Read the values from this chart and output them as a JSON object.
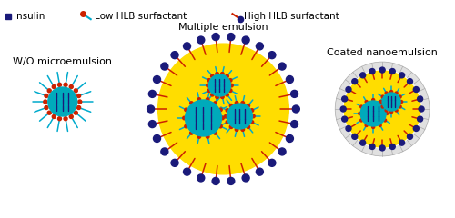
{
  "bg_color": "#ffffff",
  "insulin_color": "#1a1a7a",
  "low_hlb_line_color": "#00aacc",
  "low_hlb_dot_color": "#cc2200",
  "high_hlb_line_color": "#cc2200",
  "high_hlb_dot_color": "#1a1a7a",
  "oil_color": "#ffdd00",
  "water_core_color": "#00aabb",
  "coat_color": "#cccccc",
  "labels": [
    "W/O microemulsion",
    "Multiple emulsion",
    "Coated nanoemulsion"
  ],
  "legend_labels": [
    "Insulin",
    "Low HLB surfactant",
    "High HLB surfactant"
  ],
  "label_fontsize": 8,
  "legend_fontsize": 7.5
}
